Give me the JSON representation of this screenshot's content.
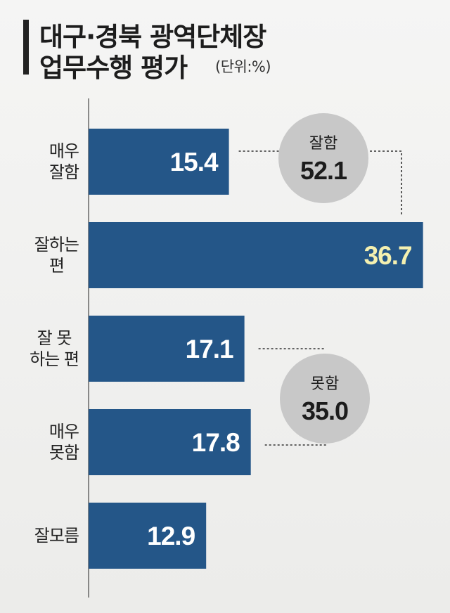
{
  "title": {
    "line1": "대구·경북 광역단체장",
    "line2": "업무수행 평가",
    "unit": "(단위:%)"
  },
  "colors": {
    "bar": "#245688",
    "value_text": "#ffffff",
    "highlight_value_text": "#f4f0b0",
    "bubble": "#c8c8c8",
    "axis": "#222222"
  },
  "chart_data": {
    "type": "bar",
    "orientation": "horizontal",
    "categories": [
      "매우\n잘함",
      "잘하는\n편",
      "잘 못\n하는 편",
      "매우\n못함",
      "잘모름"
    ],
    "values": [
      15.4,
      36.7,
      17.1,
      17.8,
      12.9
    ],
    "value_labels": [
      "15.4",
      "36.7",
      "17.1",
      "17.8",
      "12.9"
    ],
    "highlight_index": 1,
    "xlim": [
      0,
      37.5
    ],
    "groups": [
      {
        "label": "잘함",
        "value": "52.1",
        "members": [
          0,
          1
        ]
      },
      {
        "label": "못함",
        "value": "35.0",
        "members": [
          2,
          3
        ]
      }
    ]
  }
}
